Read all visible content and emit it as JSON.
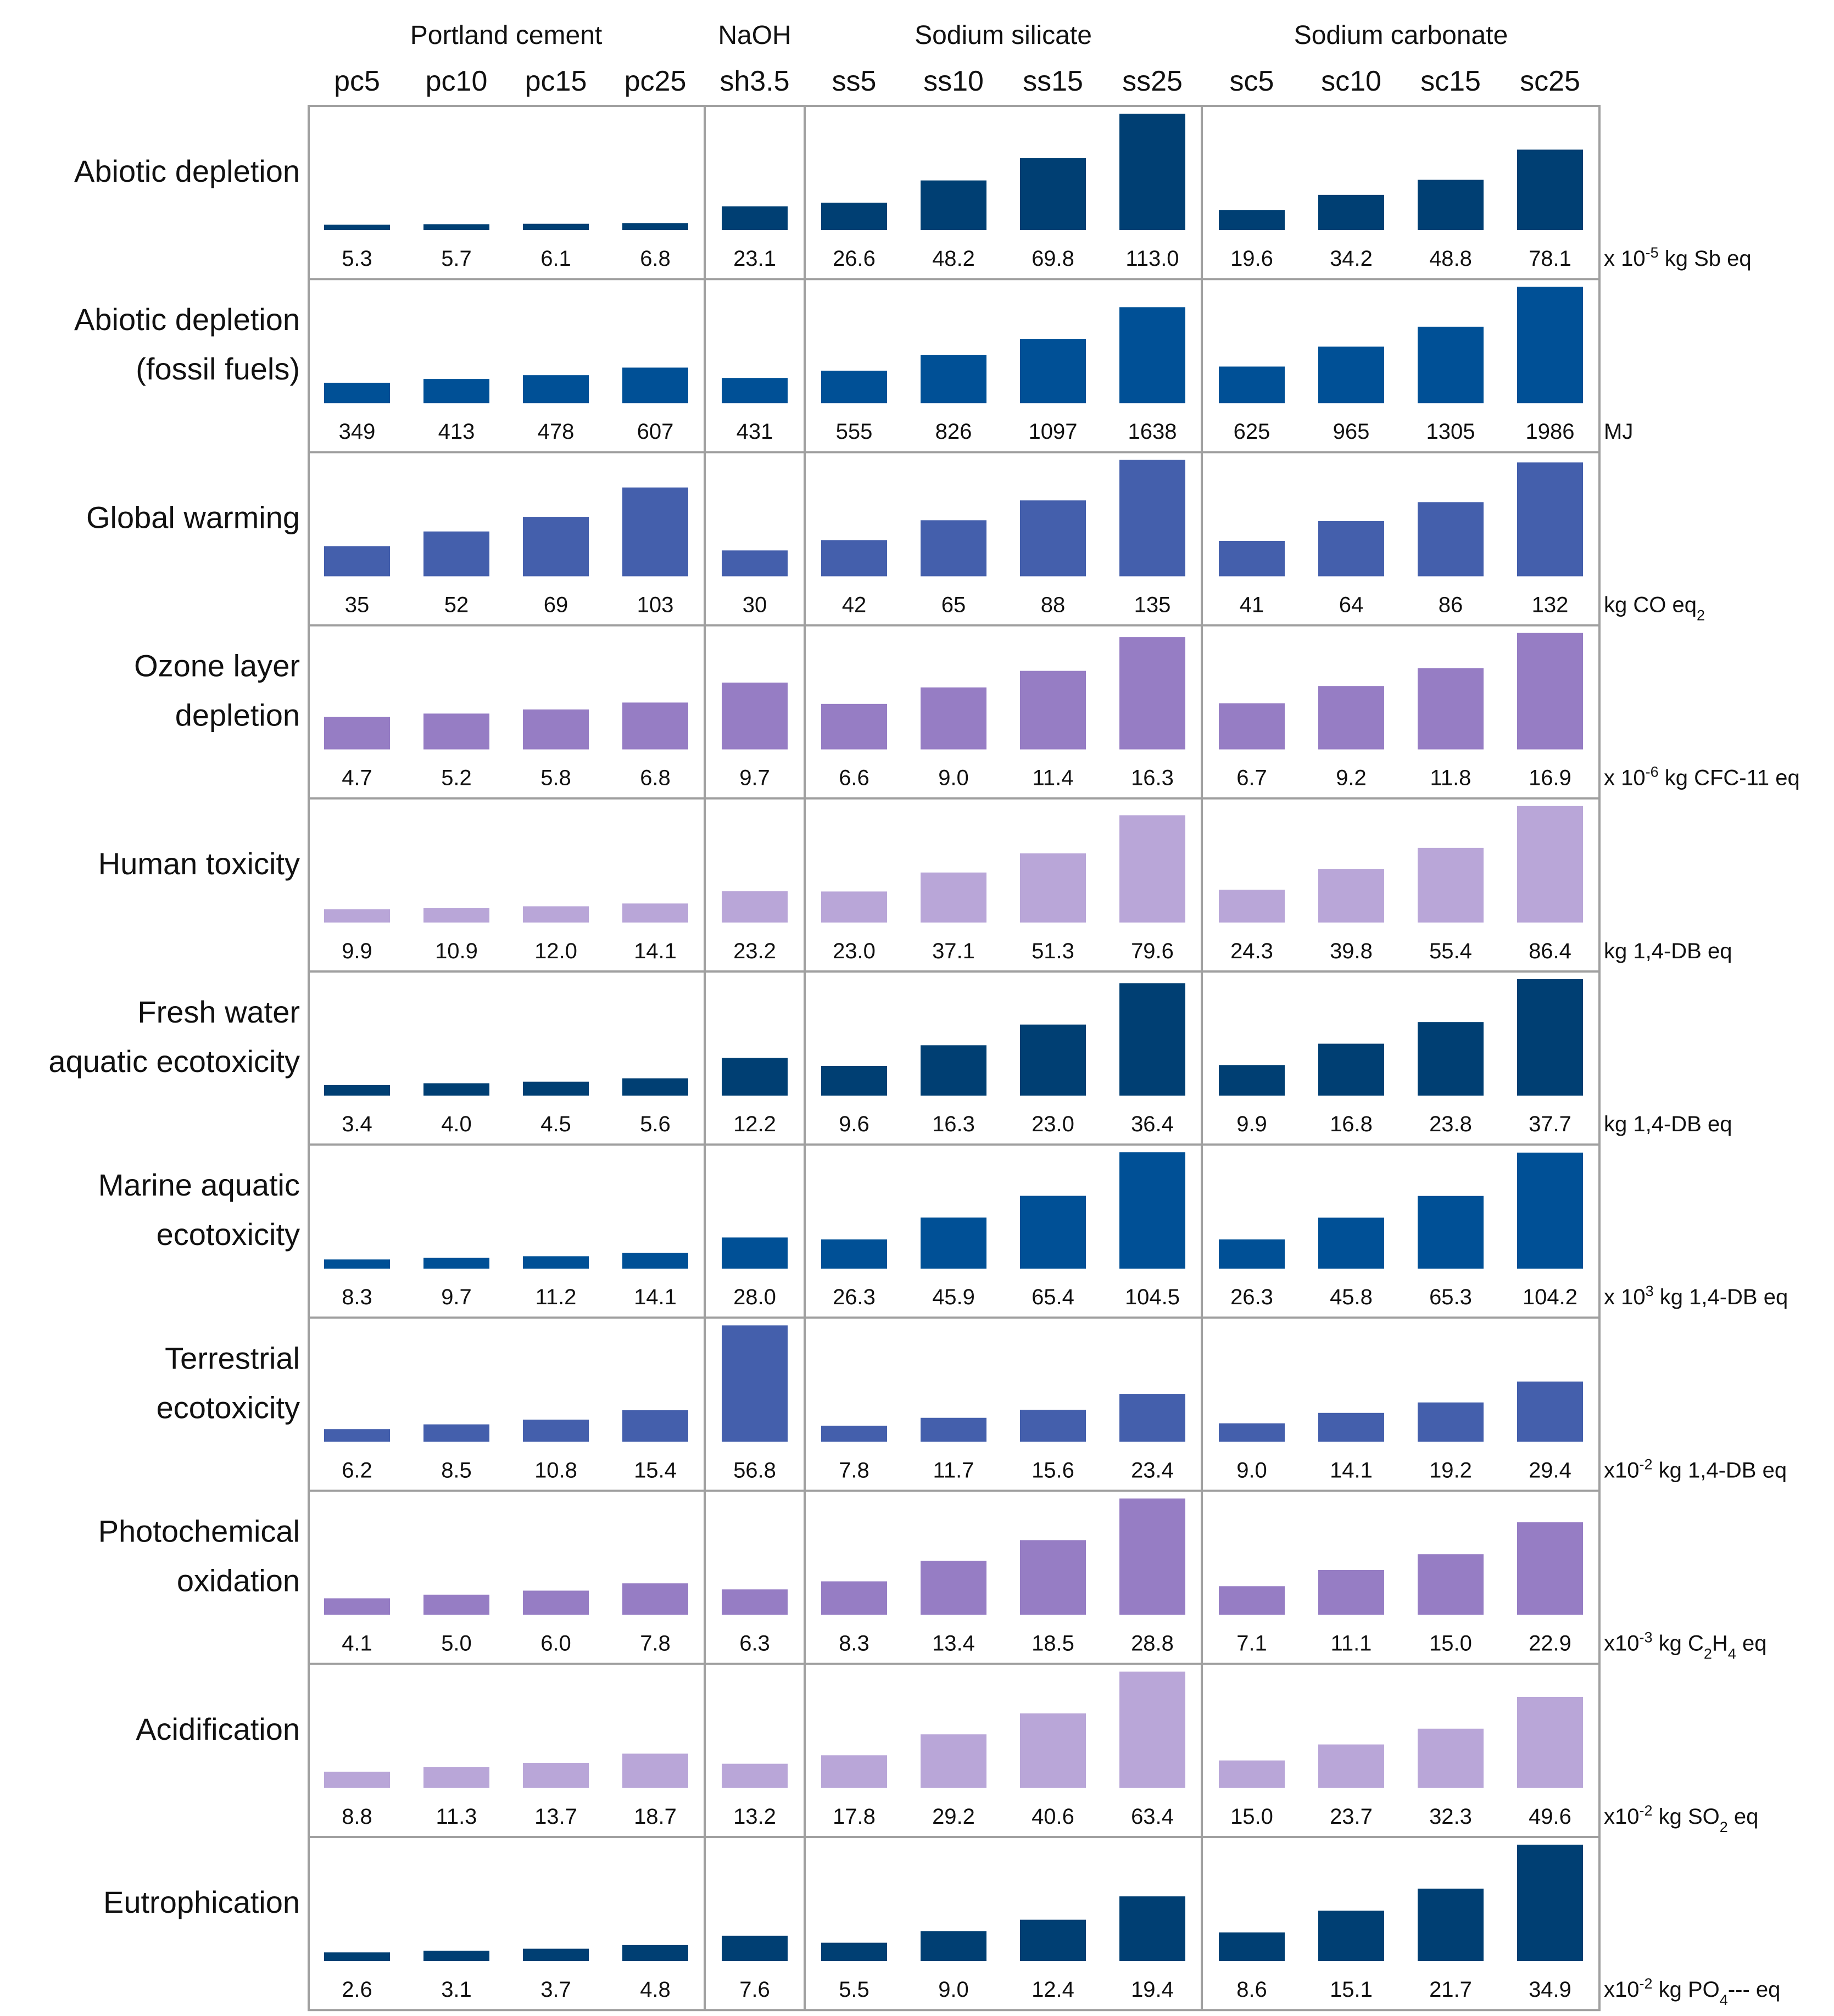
{
  "chart_data": {
    "type": "bar",
    "layout": "small-multiples",
    "group_headers": [
      {
        "label": "Portland cement",
        "members": [
          "pc5",
          "pc10",
          "pc15",
          "pc25"
        ]
      },
      {
        "label": "NaOH",
        "members": [
          "sh3.5"
        ]
      },
      {
        "label": "Sodium silicate",
        "members": [
          "ss5",
          "ss10",
          "ss15",
          "ss25"
        ]
      },
      {
        "label": "Sodium carbonate",
        "members": [
          "sc5",
          "sc10",
          "sc15",
          "sc25"
        ]
      }
    ],
    "categories": [
      "pc5",
      "pc10",
      "pc15",
      "pc25",
      "sh3.5",
      "ss5",
      "ss10",
      "ss15",
      "ss25",
      "sc5",
      "sc10",
      "sc15",
      "sc25"
    ],
    "panels": [
      {
        "name": [
          "Abiotic depletion"
        ],
        "unit": {
          "pre": "x 10",
          "sup": "-5",
          "post": " kg Sb eq"
        },
        "color": "#003f73",
        "values": [
          5.3,
          5.7,
          6.1,
          6.8,
          23.1,
          26.6,
          48.2,
          69.8,
          113.0,
          19.6,
          34.2,
          48.8,
          78.1
        ],
        "labels": [
          "5.3",
          "5.7",
          "6.1",
          "6.8",
          "23.1",
          "26.6",
          "48.2",
          "69.8",
          "113.0",
          "19.6",
          "34.2",
          "48.8",
          "78.1"
        ]
      },
      {
        "name": [
          "Abiotic depletion",
          "(fossil fuels)"
        ],
        "unit": {
          "pre": "MJ"
        },
        "color": "#005096",
        "values": [
          349,
          413,
          478,
          607,
          431,
          555,
          826,
          1097,
          1638,
          625,
          965,
          1305,
          1986
        ],
        "labels": [
          "349",
          "413",
          "478",
          "607",
          "431",
          "555",
          "826",
          "1097",
          "1638",
          "625",
          "965",
          "1305",
          "1986"
        ]
      },
      {
        "name": [
          "Global warming"
        ],
        "unit": {
          "pre": "kg CO",
          "sub": "2",
          "post": " eq"
        },
        "color": "#445fac",
        "values": [
          35,
          52,
          69,
          103,
          30,
          42,
          65,
          88,
          135,
          41,
          64,
          86,
          132
        ],
        "labels": [
          "35",
          "52",
          "69",
          "103",
          "30",
          "42",
          "65",
          "88",
          "135",
          "41",
          "64",
          "86",
          "132"
        ]
      },
      {
        "name": [
          "Ozone layer",
          "depletion"
        ],
        "unit": {
          "pre": "x 10",
          "sup": "-6",
          "post": " kg CFC-11 eq"
        },
        "color": "#967dc4",
        "values": [
          4.7,
          5.2,
          5.8,
          6.8,
          9.7,
          6.6,
          9.0,
          11.4,
          16.3,
          6.7,
          9.2,
          11.8,
          16.9
        ],
        "labels": [
          "4.7",
          "5.2",
          "5.8",
          "6.8",
          "9.7",
          "6.6",
          "9.0",
          "11.4",
          "16.3",
          "6.7",
          "9.2",
          "11.8",
          "16.9"
        ]
      },
      {
        "name": [
          "Human toxicity"
        ],
        "unit": {
          "pre": "kg 1,4-DB eq"
        },
        "color": "#b9a6d8",
        "values": [
          9.9,
          10.9,
          12.0,
          14.1,
          23.2,
          23.0,
          37.1,
          51.3,
          79.6,
          24.3,
          39.8,
          55.4,
          86.4
        ],
        "labels": [
          "9.9",
          "10.9",
          "12.0",
          "14.1",
          "23.2",
          "23.0",
          "37.1",
          "51.3",
          "79.6",
          "24.3",
          "39.8",
          "55.4",
          "86.4"
        ]
      },
      {
        "name": [
          "Fresh water",
          "aquatic ecotoxicity"
        ],
        "unit": {
          "pre": "kg 1,4-DB eq"
        },
        "color": "#003f73",
        "values": [
          3.4,
          4.0,
          4.5,
          5.6,
          12.2,
          9.6,
          16.3,
          23.0,
          36.4,
          9.9,
          16.8,
          23.8,
          37.7
        ],
        "labels": [
          "3.4",
          "4.0",
          "4.5",
          "5.6",
          "12.2",
          "9.6",
          "16.3",
          "23.0",
          "36.4",
          "9.9",
          "16.8",
          "23.8",
          "37.7"
        ]
      },
      {
        "name": [
          "Marine aquatic",
          "ecotoxicity"
        ],
        "unit": {
          "pre": "x 10",
          "sup": "3",
          "post": " kg 1,4-DB eq"
        },
        "color": "#005096",
        "values": [
          8.3,
          9.7,
          11.2,
          14.1,
          28.0,
          26.3,
          45.9,
          65.4,
          104.5,
          26.3,
          45.8,
          65.3,
          104.2
        ],
        "labels": [
          "8.3",
          "9.7",
          "11.2",
          "14.1",
          "28.0",
          "26.3",
          "45.9",
          "65.4",
          "104.5",
          "26.3",
          "45.8",
          "65.3",
          "104.2"
        ]
      },
      {
        "name": [
          "Terrestrial",
          "ecotoxicity"
        ],
        "unit": {
          "pre": "x10",
          "sup": "-2",
          "post": " kg 1,4-DB eq"
        },
        "color": "#445fac",
        "values": [
          6.2,
          8.5,
          10.8,
          15.4,
          56.8,
          7.8,
          11.7,
          15.6,
          23.4,
          9.0,
          14.1,
          19.2,
          29.4
        ],
        "labels": [
          "6.2",
          "8.5",
          "10.8",
          "15.4",
          "56.8",
          "7.8",
          "11.7",
          "15.6",
          "23.4",
          "9.0",
          "14.1",
          "19.2",
          "29.4"
        ]
      },
      {
        "name": [
          "Photochemical",
          "oxidation"
        ],
        "unit": {
          "pre": "x10",
          "sup": "-3",
          "post": " kg C",
          "sub": "2",
          "post2": "H",
          "sub2": "4",
          "post3": " eq"
        },
        "color": "#967dc4",
        "values": [
          4.1,
          5.0,
          6.0,
          7.8,
          6.3,
          8.3,
          13.4,
          18.5,
          28.8,
          7.1,
          11.1,
          15.0,
          22.9
        ],
        "labels": [
          "4.1",
          "5.0",
          "6.0",
          "7.8",
          "6.3",
          "8.3",
          "13.4",
          "18.5",
          "28.8",
          "7.1",
          "11.1",
          "15.0",
          "22.9"
        ]
      },
      {
        "name": [
          "Acidification"
        ],
        "unit": {
          "pre": "x10",
          "sup": "-2",
          "post": " kg SO",
          "sub": "2",
          "post2": " eq"
        },
        "color": "#b9a6d8",
        "values": [
          8.8,
          11.3,
          13.7,
          18.7,
          13.2,
          17.8,
          29.2,
          40.6,
          63.4,
          15.0,
          23.7,
          32.3,
          49.6
        ],
        "labels": [
          "8.8",
          "11.3",
          "13.7",
          "18.7",
          "13.2",
          "17.8",
          "29.2",
          "40.6",
          "63.4",
          "15.0",
          "23.7",
          "32.3",
          "49.6"
        ]
      },
      {
        "name": [
          "Eutrophication"
        ],
        "unit": {
          "pre": "x10",
          "sup": "-2",
          "post": " kg PO",
          "sub": "4",
          "post2": "--- eq"
        },
        "color": "#003f73",
        "values": [
          2.6,
          3.1,
          3.7,
          4.8,
          7.6,
          5.5,
          9.0,
          12.4,
          19.4,
          8.6,
          15.1,
          21.7,
          34.9
        ],
        "labels": [
          "2.6",
          "3.1",
          "3.7",
          "4.8",
          "7.6",
          "5.5",
          "9.0",
          "12.4",
          "19.4",
          "8.6",
          "15.1",
          "21.7",
          "34.9"
        ]
      }
    ]
  }
}
